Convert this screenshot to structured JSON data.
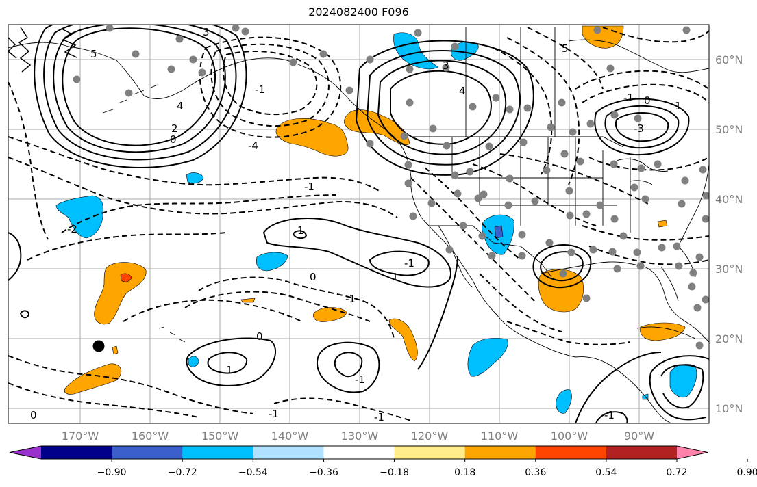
{
  "title": "2024082400 F096",
  "lat_labels": [
    "60°N",
    "50°N",
    "40°N",
    "30°N",
    "20°N",
    "10°N"
  ],
  "lon_labels": [
    "170°W",
    "160°W",
    "150°W",
    "140°W",
    "130°W",
    "120°W",
    "110°W",
    "100°W",
    "90°W"
  ],
  "colorbar": {
    "tick_labels": [
      "−0.90",
      "−0.72",
      "−0.54",
      "−0.36",
      "−0.18",
      "0.18",
      "0.36",
      "0.54",
      "0.72",
      "0.90"
    ],
    "colors": [
      "#9932cc",
      "#00008b",
      "#3a5fcd",
      "#00bfff",
      "#b0e2ff",
      "#ffffff",
      "#ffec8b",
      "#ffa500",
      "#ff4500",
      "#b22222",
      "#ff82ab"
    ]
  },
  "contour_labels": [
    "5",
    "3",
    "4",
    "2",
    "0",
    "-4",
    "-1",
    "1",
    "-2",
    "4",
    "3",
    "-1",
    "0",
    "1",
    "-3",
    "5",
    "-1",
    "0",
    "-1",
    "1",
    "-1",
    "1",
    "0",
    "-1",
    "0",
    "-1",
    "-1",
    "-1"
  ]
}
